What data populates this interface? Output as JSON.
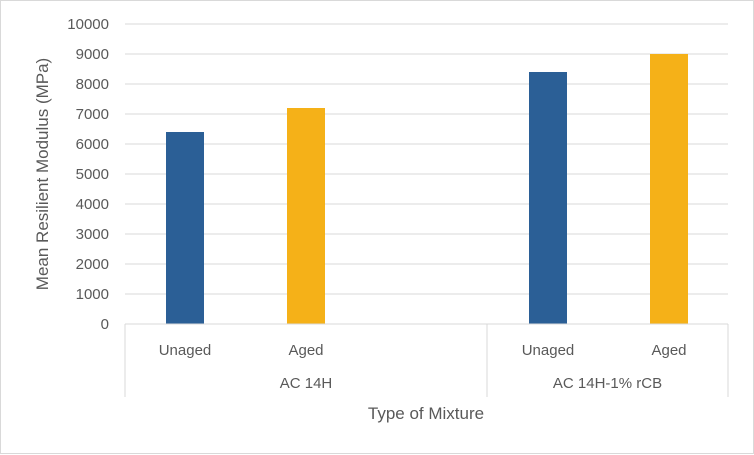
{
  "chart_data": {
    "type": "bar",
    "xlabel": "Type of Mixture",
    "ylabel": "Mean Resilient Modulus (MPa)",
    "ylim": [
      0,
      10000
    ],
    "yticks": [
      0,
      1000,
      2000,
      3000,
      4000,
      5000,
      6000,
      7000,
      8000,
      9000,
      10000
    ],
    "grid": true,
    "legend": "none",
    "groups": [
      {
        "label": "AC 14H",
        "categories": [
          "Unaged",
          "Aged"
        ],
        "values": [
          6400,
          7200
        ]
      },
      {
        "label": "AC 14H-1% rCB",
        "categories": [
          "Unaged",
          "Aged"
        ],
        "values": [
          8400,
          9000
        ]
      }
    ],
    "colors": {
      "Unaged": "#2b5f96",
      "Aged": "#f5b118",
      "grid": "#d9d9d9",
      "axis_text": "#595959"
    }
  }
}
